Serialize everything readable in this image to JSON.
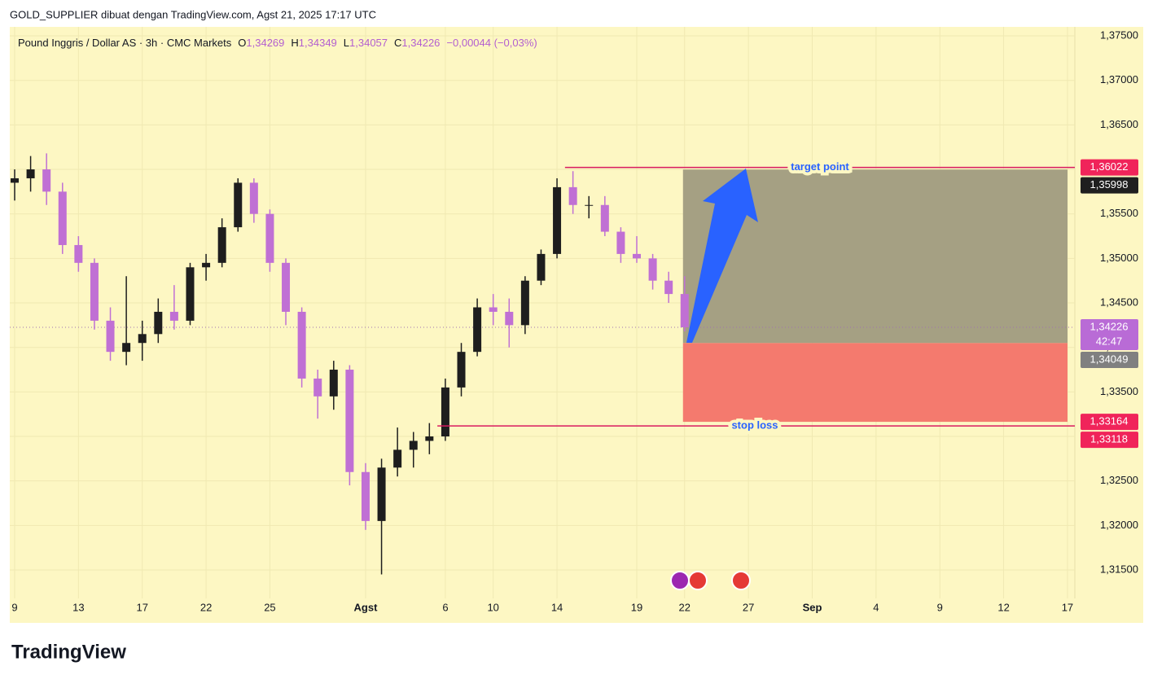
{
  "header": {
    "title": "GOLD_SUPPLIER dibuat dengan TradingView.com, Agst 21, 2025 17:17 UTC",
    "logo": "TradingView"
  },
  "chart_data": {
    "type": "candlestick",
    "legend": {
      "symbol": "Pound Inggris / Dollar AS · 3h · CMC Markets",
      "items": [
        {
          "key": "O",
          "value": "1,34269"
        },
        {
          "key": "H",
          "value": "1,34349"
        },
        {
          "key": "L",
          "value": "1,34057"
        },
        {
          "key": "C",
          "value": "1,34226"
        }
      ],
      "change": "−0,00044 (−0,03%)"
    },
    "categories": [
      "9",
      null,
      null,
      null,
      "13",
      null,
      null,
      null,
      "17",
      null,
      null,
      null,
      "22",
      null,
      null,
      null,
      "25",
      null,
      null,
      null,
      null,
      null,
      "Agst",
      null,
      null,
      null,
      null,
      "6",
      null,
      null,
      "10",
      null,
      null,
      null,
      "14",
      null,
      null,
      null,
      null,
      "19",
      null,
      null,
      "22",
      null,
      null,
      null,
      "27",
      null,
      null,
      null,
      "Sep",
      null,
      null,
      null,
      "4",
      null,
      null,
      null,
      "9",
      null,
      null,
      null,
      "12",
      null,
      null,
      null,
      "17"
    ],
    "open": [
      1.3585,
      1.359,
      1.36,
      1.3575,
      1.3515,
      1.3495,
      1.343,
      1.3395,
      1.3405,
      1.3415,
      1.344,
      1.343,
      1.349,
      1.3495,
      1.3535,
      1.3585,
      1.355,
      1.3495,
      1.344,
      1.3365,
      1.3345,
      1.3375,
      1.326,
      1.3205,
      1.3265,
      1.3285,
      1.3295,
      1.33,
      1.3355,
      1.3395,
      1.3445,
      1.344,
      1.3425,
      1.3475,
      1.3505,
      1.358,
      1.356,
      1.356,
      1.353,
      1.3505,
      1.35,
      1.3475,
      1.346,
      null,
      null,
      null,
      null,
      null,
      null,
      null,
      null,
      null,
      null,
      null,
      null,
      null,
      null,
      null,
      null,
      null,
      null,
      null,
      null,
      null,
      null,
      null,
      null
    ],
    "high": [
      1.36,
      1.3615,
      1.3618,
      1.3585,
      1.3525,
      1.35,
      1.3445,
      1.348,
      1.343,
      1.3455,
      1.347,
      1.3495,
      1.3505,
      1.3545,
      1.359,
      1.359,
      1.3555,
      1.35,
      1.3445,
      1.3375,
      1.3385,
      1.338,
      1.327,
      1.3275,
      1.331,
      1.3305,
      1.3315,
      1.3365,
      1.3405,
      1.3455,
      1.346,
      1.3455,
      1.348,
      1.351,
      1.359,
      1.3598,
      1.357,
      1.357,
      1.3535,
      1.3525,
      1.3505,
      1.3485,
      1.348,
      null,
      null,
      null,
      null,
      null,
      null,
      null,
      null,
      null,
      null,
      null,
      null,
      null,
      null,
      null,
      null,
      null,
      null,
      null,
      null,
      null,
      null,
      null,
      null
    ],
    "low": [
      1.3565,
      1.3575,
      1.356,
      1.3505,
      1.3485,
      1.342,
      1.3385,
      1.338,
      1.3385,
      1.3405,
      1.342,
      1.3425,
      1.3475,
      1.349,
      1.353,
      1.354,
      1.3485,
      1.3425,
      1.3355,
      1.332,
      1.333,
      1.3245,
      1.3195,
      1.3145,
      1.3255,
      1.3265,
      1.328,
      1.3295,
      1.3345,
      1.339,
      1.3425,
      1.34,
      1.3415,
      1.347,
      1.35,
      1.355,
      1.3545,
      1.3525,
      1.3495,
      1.3495,
      1.3465,
      1.345,
      1.3418,
      null,
      null,
      null,
      null,
      null,
      null,
      null,
      null,
      null,
      null,
      null,
      null,
      null,
      null,
      null,
      null,
      null,
      null,
      null,
      null,
      null,
      null,
      null,
      null
    ],
    "close": [
      1.359,
      1.36,
      1.3575,
      1.3515,
      1.3495,
      1.343,
      1.3395,
      1.3405,
      1.3415,
      1.344,
      1.343,
      1.349,
      1.3495,
      1.3535,
      1.3585,
      1.355,
      1.3495,
      1.344,
      1.3365,
      1.3345,
      1.3375,
      1.326,
      1.3205,
      1.3265,
      1.3285,
      1.3295,
      1.33,
      1.3355,
      1.3395,
      1.3445,
      1.344,
      1.3425,
      1.3475,
      1.3505,
      1.358,
      1.356,
      1.356,
      1.353,
      1.3505,
      1.35,
      1.3475,
      1.346,
      1.34226,
      null,
      null,
      null,
      null,
      null,
      null,
      null,
      null,
      null,
      null,
      null,
      null,
      null,
      null,
      null,
      null,
      null,
      null,
      null,
      null,
      null,
      null,
      null,
      null
    ],
    "up_color": "#1e1e1e",
    "down_color": "#c070d4",
    "ylim": [
      1.3118,
      1.37601
    ],
    "yticks": [
      {
        "value": 1.315,
        "label": "1,31500"
      },
      {
        "value": 1.32,
        "label": "1,32000"
      },
      {
        "value": 1.325,
        "label": "1,32500"
      },
      {
        "value": 1.33,
        "label": "1,33000"
      },
      {
        "value": 1.335,
        "label": "1,33500"
      },
      {
        "value": 1.34,
        "label": "1,34000"
      },
      {
        "value": 1.345,
        "label": "1,34500"
      },
      {
        "value": 1.35,
        "label": "1,35000"
      },
      {
        "value": 1.355,
        "label": "1,35500"
      },
      {
        "value": 1.36,
        "label": "1,36000"
      },
      {
        "value": 1.365,
        "label": "1,36500"
      },
      {
        "value": 1.37,
        "label": "1,37000"
      },
      {
        "value": 1.375,
        "label": "1,37500"
      }
    ],
    "grid": true,
    "position": {
      "target": 1.35998,
      "entry": 1.34049,
      "stop": 1.33164,
      "profit_color": "#a5a083",
      "loss_color": "#f47a6e"
    },
    "lines": [
      {
        "value": 1.36022,
        "label": "target point",
        "color": "#d81b60"
      },
      {
        "value": 1.33118,
        "label": "stop loss",
        "color": "#d81b60"
      }
    ],
    "price_labels": [
      {
        "value": 1.36022,
        "label": "1,36022",
        "color": "#f0245a"
      },
      {
        "value": 1.35998,
        "label": "1,35998",
        "color": "#1f1f1f"
      },
      {
        "value": 1.34226,
        "label": "1,34226",
        "sublabel": "42:47",
        "color": "#b96bd6"
      },
      {
        "value": 1.34049,
        "label": "1,34049",
        "color": "#808080"
      },
      {
        "value": 1.33164,
        "label": "1,33164",
        "color": "#f0245a"
      },
      {
        "value": 1.33118,
        "label": "1,33118",
        "color": "#f0245a"
      }
    ]
  }
}
